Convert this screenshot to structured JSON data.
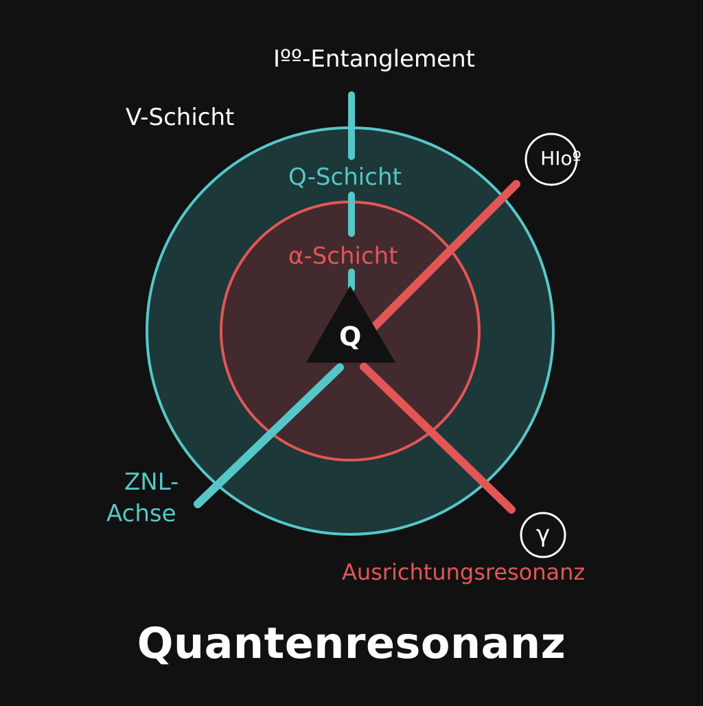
{
  "title": "Quantenresonanz",
  "labels": {
    "top_entanglement": "Iºº-Entanglement",
    "v_layer": "V-Schicht",
    "q_layer": "Q-Schicht",
    "alpha_layer": "α-Schicht",
    "center": "Q",
    "znl_line1": "ZNL-",
    "znl_line2": "Achse",
    "alignment": "Ausrichtungsresonanz",
    "badge_top": "HIoº",
    "badge_bottom": "γ"
  },
  "colors": {
    "background": "#111111",
    "teal": "#56c7c9",
    "red": "#e35656",
    "outer_fill": "#1c3838",
    "inner_fill": "#432a2e",
    "text": "#ffffff"
  },
  "icons": {
    "center": "triangle-icon",
    "badge_top": "hio-badge-icon",
    "badge_bottom": "gamma-badge-icon"
  }
}
